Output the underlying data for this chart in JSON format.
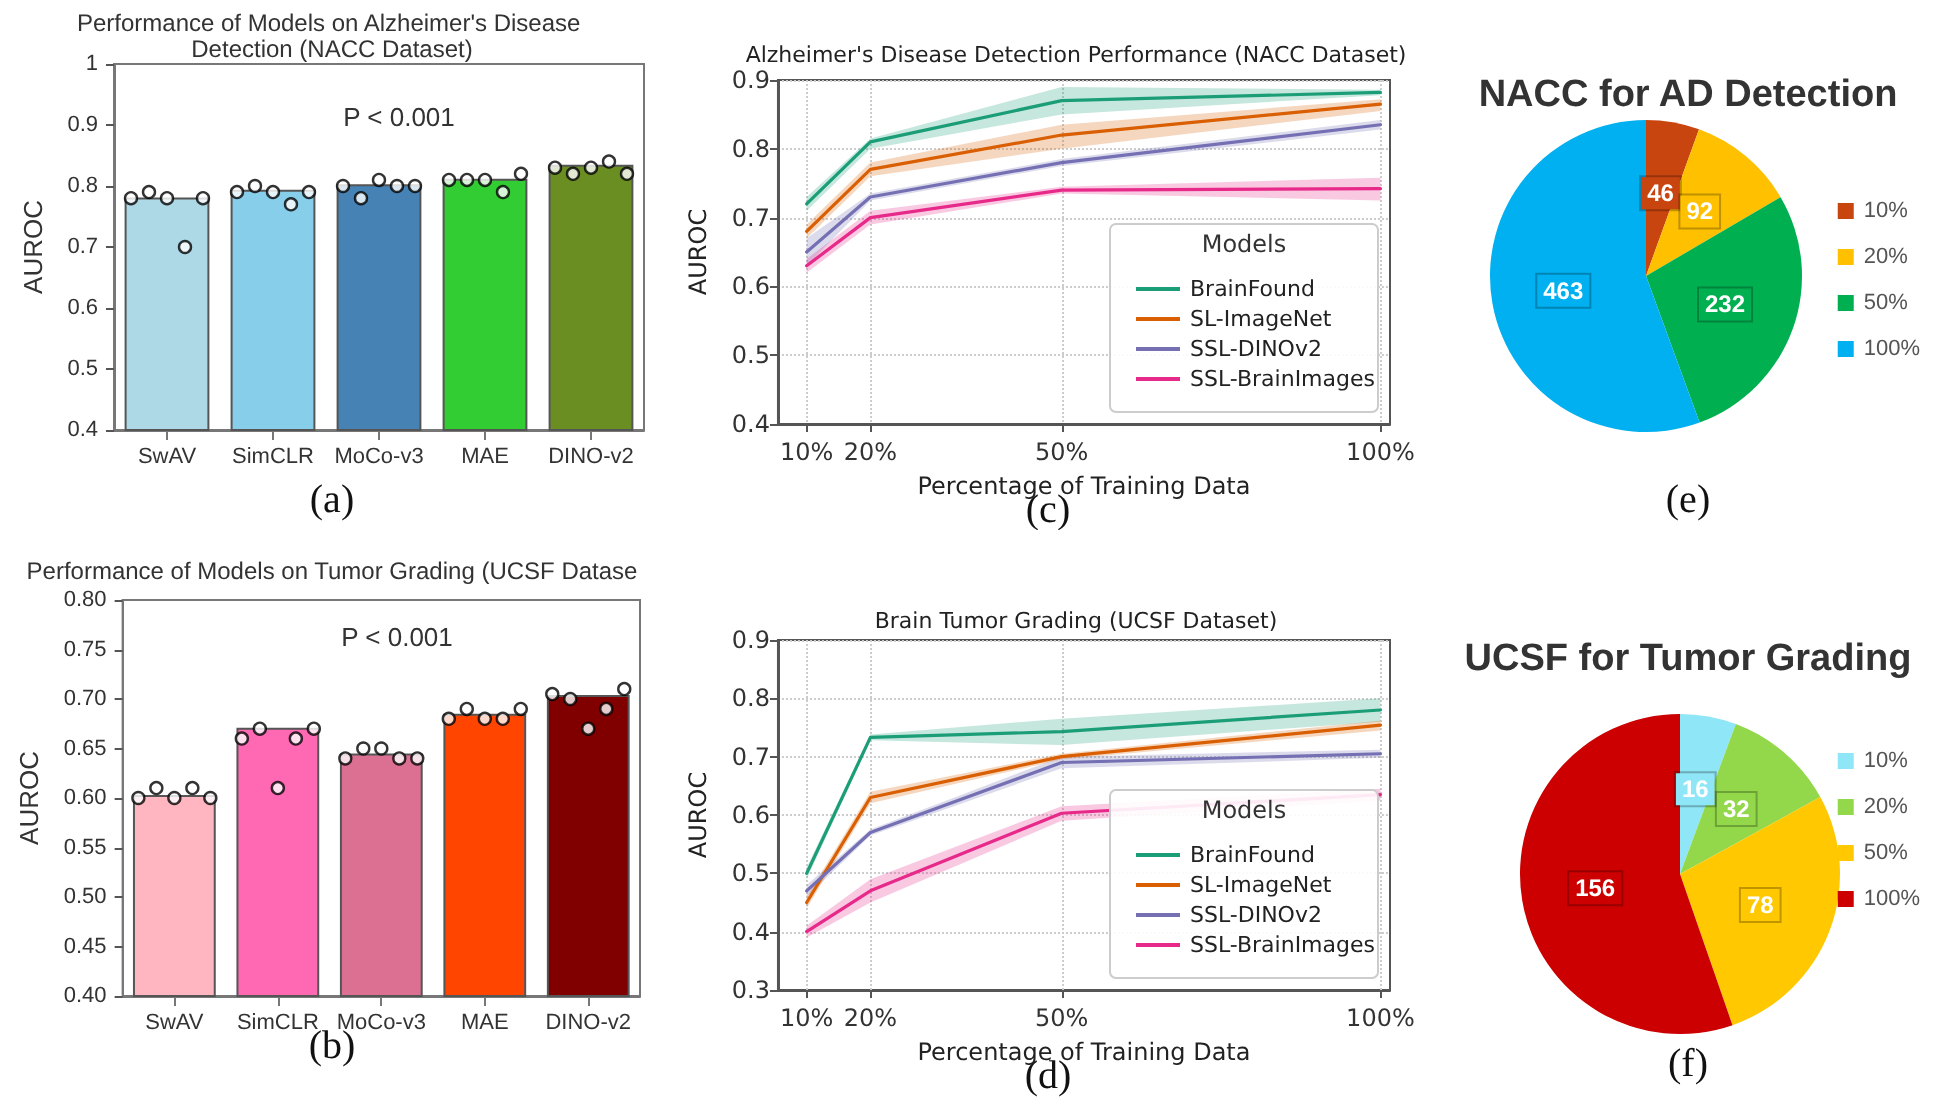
{
  "chart_data": [
    {
      "type": "bar",
      "title": "Performance of Models on Alzheimer's Disease Detection (NACC Dataset)",
      "ylabel": "AUROC",
      "categories": [
        "SwAV",
        "SimCLR",
        "MoCo-v3",
        "MAE",
        "DINO-v2"
      ],
      "ylim": [
        0.4,
        1.0
      ],
      "yticks": [
        0.4,
        0.5,
        0.6,
        0.7,
        0.8,
        0.9,
        1.0
      ],
      "marker": "circle",
      "annotations": [
        "P < 0.001",
        "(a)"
      ],
      "series": [
        {
          "type": "bar",
          "values": [
            0.781,
            0.794,
            0.803,
            0.812,
            0.835
          ],
          "colors": [
            "#add8e6",
            "#87ceeb",
            "#4682b4",
            "#32cd32",
            "#6b8e23"
          ]
        },
        {
          "type": "scatter",
          "color": "#000000",
          "x": [
            "SwAV",
            "SwAV",
            "SwAV",
            "SwAV",
            "SwAV",
            "SimCLR",
            "SimCLR",
            "SimCLR",
            "SimCLR",
            "SimCLR",
            "MoCo-v3",
            "MoCo-v3",
            "MoCo-v3",
            "MoCo-v3",
            "MoCo-v3",
            "MAE",
            "MAE",
            "MAE",
            "MAE",
            "MAE",
            "DINO-v2",
            "DINO-v2",
            "DINO-v2",
            "DINO-v2",
            "DINO-v2"
          ],
          "values": [
            0.78,
            0.79,
            0.78,
            0.7,
            0.78,
            0.79,
            0.8,
            0.79,
            0.77,
            0.79,
            0.8,
            0.78,
            0.81,
            0.8,
            0.8,
            0.81,
            0.81,
            0.81,
            0.79,
            0.82,
            0.83,
            0.82,
            0.83,
            0.84,
            0.82
          ]
        }
      ]
    },
    {
      "type": "bar",
      "title": "Performance of Models on Tumor Grading (UCSF Datase",
      "ylabel": "AUROC",
      "categories": [
        "SwAV",
        "SimCLR",
        "MoCo-v3",
        "MAE",
        "DINO-v2"
      ],
      "ylim": [
        0.4,
        0.8
      ],
      "yticks": [
        {
          "value": 0.4,
          "label": "0.40"
        },
        {
          "value": 0.45,
          "label": "0.45"
        },
        {
          "value": 0.5,
          "label": "0.50"
        },
        {
          "value": 0.55,
          "label": "0.55"
        },
        {
          "value": 0.6,
          "label": "0.60"
        },
        {
          "value": 0.65,
          "label": "0.65"
        },
        {
          "value": 0.7,
          "label": "0.70"
        },
        {
          "value": 0.75,
          "label": "0.75"
        },
        {
          "value": 0.8,
          "label": "0.80"
        }
      ],
      "marker": "circle",
      "annotations": [
        "P < 0.001",
        "(b)"
      ],
      "series": [
        {
          "type": "bar",
          "values": [
            0.603,
            0.671,
            0.645,
            0.685,
            0.704
          ],
          "colors": [
            "#ffb6c1",
            "#ff69b4",
            "#db7093",
            "#ff4500",
            "#800000"
          ]
        },
        {
          "type": "scatter",
          "color": "#000000",
          "x": [
            "SwAV",
            "SwAV",
            "SwAV",
            "SwAV",
            "SwAV",
            "SimCLR",
            "SimCLR",
            "SimCLR",
            "SimCLR",
            "SimCLR",
            "MoCo-v3",
            "MoCo-v3",
            "MoCo-v3",
            "MoCo-v3",
            "MoCo-v3",
            "MAE",
            "MAE",
            "MAE",
            "MAE",
            "MAE",
            "DINO-v2",
            "DINO-v2",
            "DINO-v2",
            "DINO-v2",
            "DINO-v2"
          ],
          "values": [
            0.6,
            0.61,
            0.6,
            0.61,
            0.6,
            0.66,
            0.67,
            0.61,
            0.66,
            0.67,
            0.64,
            0.65,
            0.65,
            0.64,
            0.64,
            0.68,
            0.69,
            0.68,
            0.68,
            0.69,
            0.705,
            0.7,
            0.67,
            0.69,
            0.71
          ]
        }
      ]
    },
    {
      "type": "line",
      "title": "Alzheimer's Disease Detection Performance (NACC Dataset)",
      "xlabel": "Percentage of Training Data",
      "ylabel": "AUROC",
      "x": [
        10,
        20,
        50,
        100
      ],
      "xlim": [
        5.5,
        101.5
      ],
      "xticks": [
        {
          "value": 10,
          "label": "10%"
        },
        {
          "value": 20,
          "label": "20%"
        },
        {
          "value": 50,
          "label": "50%"
        },
        {
          "value": 100,
          "label": "100%"
        }
      ],
      "ylim": [
        0.4,
        0.9
      ],
      "yticks": [
        0.4,
        0.5,
        0.6,
        0.7,
        0.8,
        0.9
      ],
      "grid": true,
      "legend": "bottom right",
      "legend_title": "Models",
      "line_style": "solid",
      "annotations": [
        "(c)"
      ],
      "series": [
        {
          "name": "BrainFound",
          "color": "#1b9e77",
          "values": [
            0.72,
            0.81,
            0.87,
            0.882
          ],
          "lower": [
            0.71,
            0.8,
            0.85,
            0.878
          ],
          "upper": [
            0.73,
            0.815,
            0.89,
            0.886
          ]
        },
        {
          "name": "SL-ImageNet",
          "color": "#d95f02",
          "values": [
            0.68,
            0.77,
            0.82,
            0.865
          ],
          "lower": [
            0.67,
            0.76,
            0.8,
            0.855
          ],
          "upper": [
            0.69,
            0.78,
            0.835,
            0.872
          ]
        },
        {
          "name": "SSL-DINOv2",
          "color": "#7570b3",
          "values": [
            0.65,
            0.73,
            0.78,
            0.835
          ],
          "lower": [
            0.63,
            0.725,
            0.775,
            0.828
          ],
          "upper": [
            0.67,
            0.735,
            0.785,
            0.842
          ]
        },
        {
          "name": "SSL-BrainImages",
          "color": "#e7298a",
          "values": [
            0.63,
            0.7,
            0.74,
            0.742
          ],
          "lower": [
            0.62,
            0.69,
            0.735,
            0.725
          ],
          "upper": [
            0.64,
            0.71,
            0.745,
            0.758
          ]
        }
      ]
    },
    {
      "type": "line",
      "title": "Brain Tumor Grading (UCSF Dataset)",
      "xlabel": "Percentage of Training Data",
      "ylabel": "AUROC",
      "x": [
        10,
        20,
        50,
        100
      ],
      "xlim": [
        5.5,
        101.5
      ],
      "xticks": [
        {
          "value": 10,
          "label": "10%"
        },
        {
          "value": 20,
          "label": "20%"
        },
        {
          "value": 50,
          "label": "50%"
        },
        {
          "value": 100,
          "label": "100%"
        }
      ],
      "ylim": [
        0.3,
        0.9
      ],
      "yticks": [
        0.3,
        0.4,
        0.5,
        0.6,
        0.7,
        0.8,
        0.9
      ],
      "grid": true,
      "legend": "bottom right",
      "legend_title": "Models",
      "line_style": "solid",
      "annotations": [
        "(d)"
      ],
      "series": [
        {
          "name": "BrainFound",
          "color": "#1b9e77",
          "values": [
            0.5,
            0.733,
            0.743,
            0.78
          ],
          "lower": [
            0.49,
            0.728,
            0.72,
            0.76
          ],
          "upper": [
            0.51,
            0.738,
            0.765,
            0.8
          ]
        },
        {
          "name": "SL-ImageNet",
          "color": "#d95f02",
          "values": [
            0.45,
            0.63,
            0.7,
            0.754
          ],
          "lower": [
            0.44,
            0.62,
            0.695,
            0.745
          ],
          "upper": [
            0.46,
            0.64,
            0.705,
            0.762
          ]
        },
        {
          "name": "SSL-DINOv2",
          "color": "#7570b3",
          "values": [
            0.47,
            0.57,
            0.69,
            0.705
          ],
          "lower": [
            0.46,
            0.565,
            0.68,
            0.698
          ],
          "upper": [
            0.48,
            0.575,
            0.7,
            0.712
          ]
        },
        {
          "name": "SSL-BrainImages",
          "color": "#e7298a",
          "values": [
            0.4,
            0.47,
            0.603,
            0.635
          ],
          "lower": [
            0.39,
            0.45,
            0.59,
            0.625
          ],
          "upper": [
            0.41,
            0.49,
            0.615,
            0.645
          ]
        }
      ]
    },
    {
      "type": "pie",
      "title": "NACC for AD Detection",
      "categories": [
        "10%",
        "20%",
        "50%",
        "100%"
      ],
      "values": [
        46,
        92,
        232,
        463
      ],
      "colors": [
        "#c9450f",
        "#ffc000",
        "#00b050",
        "#00b0f0"
      ],
      "data_labels": true,
      "legend": "right",
      "annotations": [
        "(e)"
      ]
    },
    {
      "type": "pie",
      "title": "UCSF for Tumor Grading",
      "categories": [
        "10%",
        "20%",
        "50%",
        "100%"
      ],
      "values": [
        16,
        32,
        78,
        156
      ],
      "colors": [
        "#8fe6f6",
        "#92d84a",
        "#ffc800",
        "#cc0000"
      ],
      "data_labels": true,
      "legend": "right",
      "annotations": [
        "(f)"
      ]
    }
  ]
}
